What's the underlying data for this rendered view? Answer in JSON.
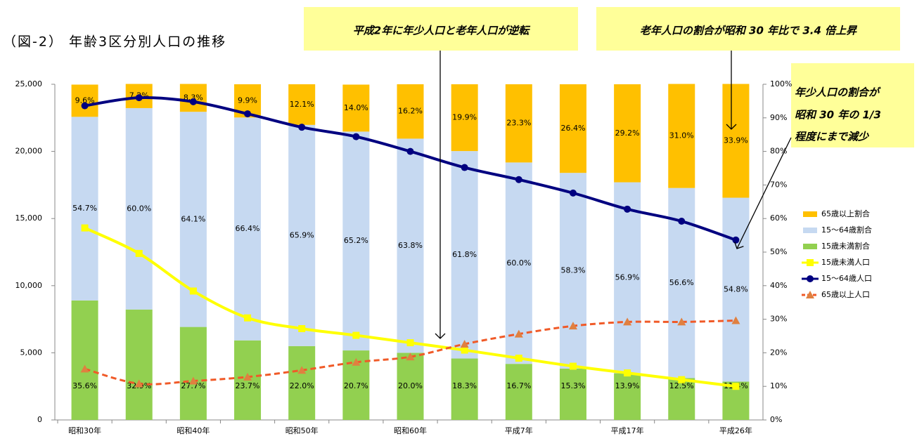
{
  "chart_data": {
    "type": "bar",
    "title": "（図-2） 年齢3区分別人口の推移",
    "annotations": [
      "平成2年に年少人口と老年人口が逆転",
      "老年人口の割合が昭和 30 年比で 3.4 倍上昇",
      [
        "年少人口の割合が",
        "昭和 30 年の 1/3",
        "程度にまで減少"
      ]
    ],
    "categories": [
      "昭和30年",
      null,
      "昭和40年",
      null,
      "昭和50年",
      null,
      "昭和60年",
      null,
      "平成7年",
      null,
      "平成17年",
      null,
      "平成26年"
    ],
    "series": [
      {
        "name": "65歳以上割合",
        "type": "bar",
        "axis": "y2",
        "color": "#ffc000",
        "values": [
          9.6,
          7.2,
          8.3,
          9.9,
          12.1,
          14.0,
          16.2,
          19.9,
          23.3,
          26.4,
          29.2,
          31.0,
          33.9
        ],
        "value_labels": [
          "9.6%",
          "7.2%",
          "8.3%",
          "9.9%",
          "12.1%",
          "14.0%",
          "16.2%",
          "19.9%",
          "23.3%",
          "26.4%",
          "29.2%",
          "31.0%",
          "33.9%"
        ]
      },
      {
        "name": "15～64歳割合",
        "type": "bar",
        "axis": "y2",
        "color": "#c6d9f1",
        "values": [
          54.7,
          60.0,
          64.1,
          66.4,
          65.9,
          65.2,
          63.8,
          61.8,
          60.0,
          58.3,
          56.9,
          56.6,
          54.8
        ],
        "value_labels": [
          "54.7%",
          "60.0%",
          "64.1%",
          "66.4%",
          "65.9%",
          "65.2%",
          "63.8%",
          "61.8%",
          "60.0%",
          "58.3%",
          "56.9%",
          "56.6%",
          "54.8%"
        ]
      },
      {
        "name": "15歳未満割合",
        "type": "bar",
        "axis": "y2",
        "color": "#92d050",
        "values": [
          35.6,
          32.9,
          27.7,
          23.7,
          22.0,
          20.7,
          20.0,
          18.3,
          16.7,
          15.3,
          13.9,
          12.5,
          11.4
        ],
        "value_labels": [
          "35.6%",
          "32.9%",
          "27.7%",
          "23.7%",
          "22.0%",
          "20.7%",
          "20.0%",
          "18.3%",
          "16.7%",
          "15.3%",
          "13.9%",
          "12.5%",
          "11.4%"
        ]
      },
      {
        "name": "15歳未満人口",
        "type": "line",
        "color": "#ffff00",
        "marker": "square",
        "values": [
          14300,
          12400,
          9600,
          7600,
          6800,
          6300,
          5750,
          5200,
          4600,
          4000,
          3500,
          3000,
          2500
        ]
      },
      {
        "name": "15～64歳人口",
        "type": "line",
        "color": "#000080",
        "marker": "circle",
        "values": [
          23400,
          24000,
          23700,
          22800,
          21800,
          21100,
          20000,
          18800,
          17900,
          16900,
          15700,
          14800,
          13400
        ]
      },
      {
        "name": "65歳以上人口",
        "type": "line",
        "color": "#f05a28",
        "marker": "triangle",
        "dashed": true,
        "marker_color": "#e08040",
        "values": [
          3800,
          2700,
          2900,
          3200,
          3700,
          4300,
          4700,
          5650,
          6400,
          7000,
          7300,
          7300,
          7400
        ]
      }
    ],
    "ylim": [
      0,
      25000
    ],
    "yticks": [
      0,
      {
        "value": 5000,
        "label": "5,000"
      },
      {
        "value": 10000,
        "label": "10,000"
      },
      {
        "value": 15000,
        "label": "15,000"
      },
      {
        "value": 20000,
        "label": "20,000"
      },
      {
        "value": 25000,
        "label": "25,000"
      }
    ],
    "y2lim": [
      0,
      100
    ],
    "y2ticks": [
      {
        "value": 0,
        "label": "0%"
      },
      {
        "value": 10,
        "label": "10%"
      },
      {
        "value": 20,
        "label": "20%"
      },
      {
        "value": 30,
        "label": "30%"
      },
      {
        "value": 40,
        "label": "40%"
      },
      {
        "value": 50,
        "label": "50%"
      },
      {
        "value": 60,
        "label": "60%"
      },
      {
        "value": 70,
        "label": "70%"
      },
      {
        "value": 80,
        "label": "80%"
      },
      {
        "value": 90,
        "label": "90%"
      },
      {
        "value": 100,
        "label": "100%"
      }
    ],
    "grid": false
  }
}
